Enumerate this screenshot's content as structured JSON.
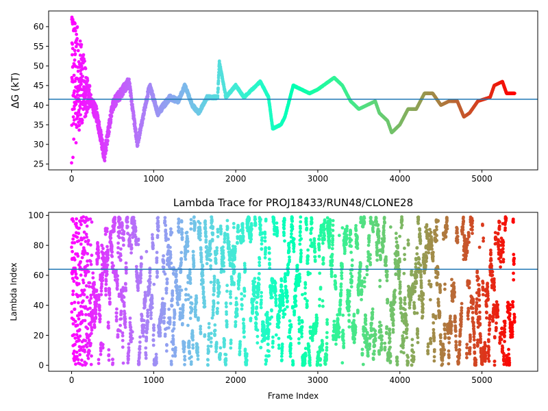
{
  "chart_data": [
    {
      "type": "scatter",
      "title": "",
      "xlabel": "",
      "ylabel": "ΔG (kT)",
      "xlim": [
        -280,
        5680
      ],
      "ylim": [
        23.5,
        64
      ],
      "xticks": [
        0,
        1000,
        2000,
        3000,
        4000,
        5000
      ],
      "yticks": [
        25,
        30,
        35,
        40,
        45,
        50,
        55,
        60
      ],
      "hline": 41.5,
      "colormap": "rainbow (red at frame 0 to violet at final frame)",
      "grid": false,
      "points_per_series": 5400,
      "trace": [
        [
          0,
          60
        ],
        [
          150,
          45
        ],
        [
          300,
          38
        ],
        [
          400,
          27
        ],
        [
          500,
          40
        ],
        [
          700,
          46
        ],
        [
          800,
          30
        ],
        [
          950,
          45
        ],
        [
          1050,
          38
        ],
        [
          1200,
          42
        ],
        [
          1300,
          41
        ],
        [
          1380,
          45
        ],
        [
          1470,
          40
        ],
        [
          1550,
          38
        ],
        [
          1650,
          42
        ],
        [
          1780,
          42
        ],
        [
          1800,
          51
        ],
        [
          1880,
          42
        ],
        [
          2000,
          45
        ],
        [
          2100,
          42
        ],
        [
          2300,
          46
        ],
        [
          2400,
          42
        ],
        [
          2450,
          34
        ],
        [
          2550,
          35
        ],
        [
          2600,
          37
        ],
        [
          2700,
          45
        ],
        [
          2800,
          44
        ],
        [
          2900,
          43
        ],
        [
          3000,
          44
        ],
        [
          3200,
          47
        ],
        [
          3300,
          45
        ],
        [
          3400,
          41
        ],
        [
          3500,
          39
        ],
        [
          3600,
          40
        ],
        [
          3700,
          41
        ],
        [
          3750,
          38
        ],
        [
          3850,
          36
        ],
        [
          3900,
          33
        ],
        [
          4000,
          35
        ],
        [
          4100,
          39
        ],
        [
          4200,
          39
        ],
        [
          4300,
          43
        ],
        [
          4400,
          43
        ],
        [
          4500,
          40
        ],
        [
          4600,
          41
        ],
        [
          4700,
          41
        ],
        [
          4780,
          37
        ],
        [
          4850,
          38
        ],
        [
          4950,
          41
        ],
        [
          5100,
          42
        ],
        [
          5150,
          45
        ],
        [
          5250,
          46
        ],
        [
          5300,
          43
        ],
        [
          5400,
          43
        ]
      ],
      "early_scatter_range": [
        24,
        62.5
      ]
    },
    {
      "type": "scatter",
      "title": "Lambda Trace for PROJ18433/RUN48/CLONE28",
      "xlabel": "Frame Index",
      "ylabel": "Lambda Index",
      "xlim": [
        -280,
        5680
      ],
      "ylim": [
        -4,
        102
      ],
      "xticks": [
        0,
        1000,
        2000,
        3000,
        4000,
        5000
      ],
      "yticks": [
        0,
        20,
        40,
        60,
        80,
        100
      ],
      "hline": 64,
      "colormap": "rainbow (red at frame 0 to violet at final frame)",
      "grid": false,
      "points_per_series": 5400,
      "value_range": [
        0,
        99
      ]
    }
  ]
}
